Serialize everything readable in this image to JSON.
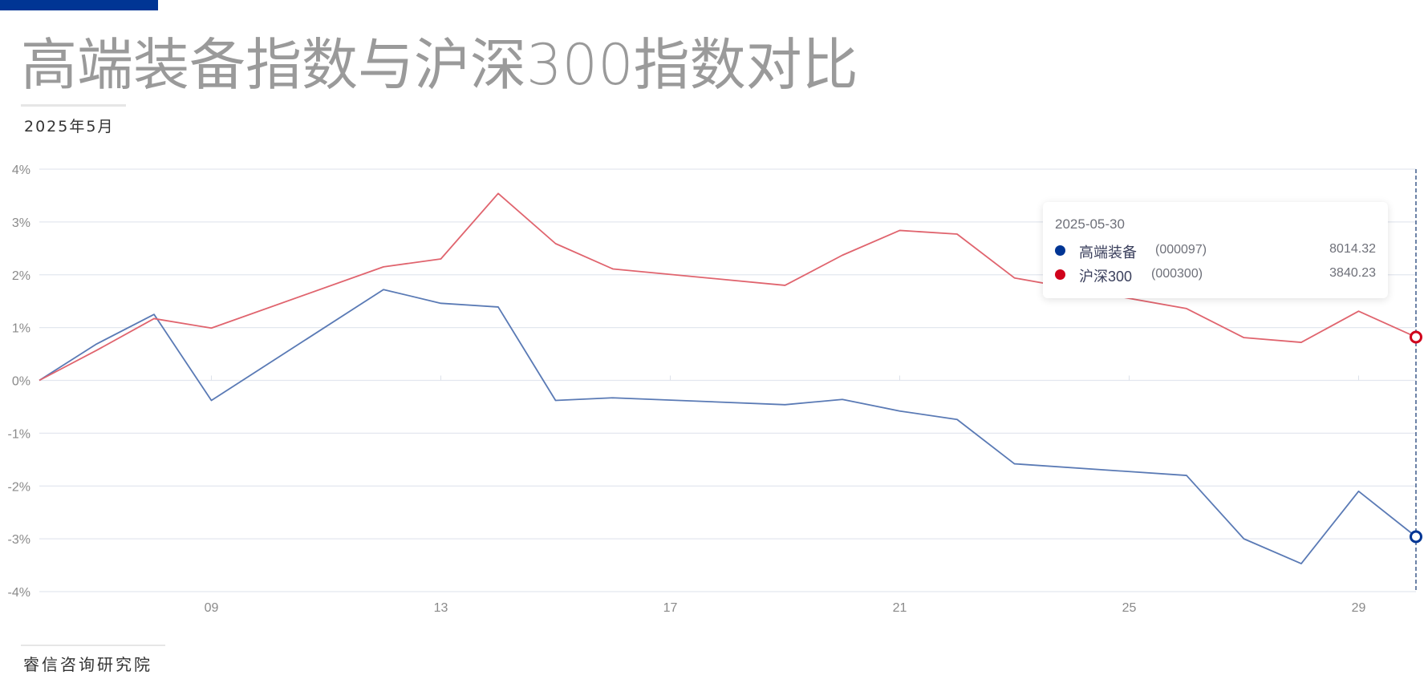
{
  "header": {
    "title": "高端装备指数与沪深300指数对比",
    "subtitle": "2025年5月",
    "accent_color": "#003594"
  },
  "footer": {
    "source": "睿信咨询研究院"
  },
  "tooltip": {
    "date": "2025-05-30",
    "rows": [
      {
        "name": "高端装备",
        "code": "(000097)",
        "value": "8014.32",
        "color": "#003594"
      },
      {
        "name": "沪深300",
        "code": "(000300)",
        "value": "3840.23",
        "color": "#d0021b"
      }
    ]
  },
  "chart_data": {
    "type": "line",
    "title": "高端装备指数与沪深300指数对比",
    "subtitle": "2025年5月",
    "xlabel": "",
    "ylabel": "",
    "x": [
      "06",
      "07",
      "08",
      "09",
      "12",
      "13",
      "14",
      "15",
      "16",
      "19",
      "20",
      "21",
      "22",
      "23",
      "26",
      "27",
      "28",
      "29",
      "30"
    ],
    "x_day": [
      6,
      7,
      8,
      9,
      12,
      13,
      14,
      15,
      16,
      19,
      20,
      21,
      22,
      23,
      26,
      27,
      28,
      29,
      30
    ],
    "x_tick_labels": [
      "09",
      "13",
      "17",
      "21",
      "25",
      "29"
    ],
    "y_tick_labels": [
      "4%",
      "3%",
      "2%",
      "1%",
      "0%",
      "-1%",
      "-2%",
      "-3%",
      "-4%"
    ],
    "ylim": [
      -4,
      4
    ],
    "grid": true,
    "legend_position": "tooltip",
    "series": [
      {
        "name": "高端装备 (000097)",
        "color": "#5a7ab5",
        "values": [
          0,
          0.69,
          1.25,
          -0.38,
          1.72,
          1.46,
          1.39,
          -0.38,
          -0.33,
          -0.46,
          -0.36,
          -0.58,
          -0.74,
          -1.58,
          -1.8,
          -3.0,
          -3.47,
          -2.1,
          -2.96
        ]
      },
      {
        "name": "沪深300 (000300)",
        "color": "#e0646e",
        "values": [
          0,
          0.57,
          1.17,
          0.99,
          2.15,
          2.3,
          3.54,
          2.59,
          2.11,
          1.8,
          2.37,
          2.84,
          2.77,
          1.94,
          1.36,
          0.81,
          0.72,
          1.31,
          0.82
        ]
      }
    ],
    "annotations": [
      "hover crosshair at 2025-05-30"
    ]
  }
}
